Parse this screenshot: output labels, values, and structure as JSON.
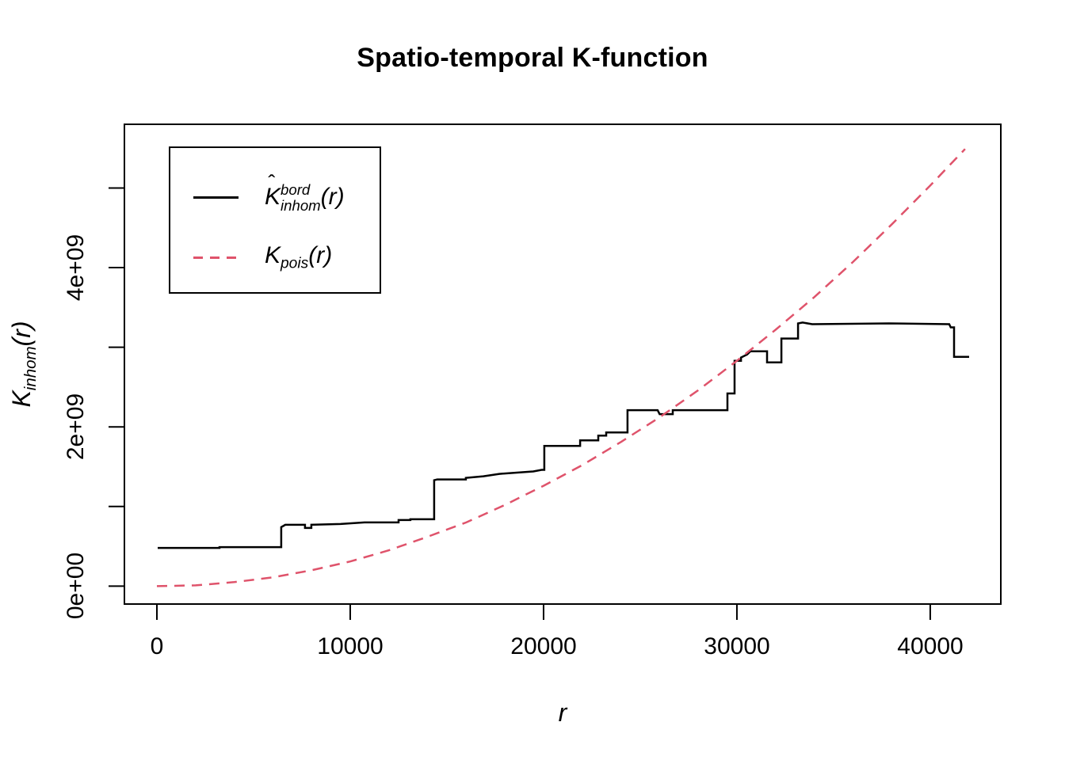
{
  "title": "Spatio-temporal K-function",
  "colors": {
    "foreground": "#000000",
    "poisson_red": "#DF536B",
    "background": "#FFFFFF"
  },
  "axis": {
    "xlabel": "r",
    "ylabel": {
      "base": "K",
      "sub": "inhom",
      "arg": "(r)"
    },
    "x_ticks": [
      {
        "value": 0,
        "label": "0"
      },
      {
        "value": 10000,
        "label": "10000"
      },
      {
        "value": 20000,
        "label": "20000"
      },
      {
        "value": 30000,
        "label": "30000"
      },
      {
        "value": 40000,
        "label": "40000"
      }
    ],
    "y_ticks": [
      {
        "value": 0,
        "label": "0e+00"
      },
      {
        "value": 1,
        "label": ""
      },
      {
        "value": 2,
        "label": "2e+09"
      },
      {
        "value": 3,
        "label": ""
      },
      {
        "value": 4,
        "label": "4e+09"
      },
      {
        "value": 5,
        "label": ""
      }
    ]
  },
  "legend": {
    "entries": [
      {
        "style": "solid",
        "color": "#000000",
        "label": {
          "hat": "ˆ",
          "base": "K",
          "sup": "bord",
          "sub": "inhom",
          "arg": "(r)"
        }
      },
      {
        "style": "dashed",
        "color": "#DF536B",
        "label": {
          "base": "K",
          "sub": "pois",
          "arg": "(r)"
        }
      }
    ]
  },
  "chart_data": {
    "type": "line",
    "title": "Spatio-temporal K-function",
    "xlabel": "r",
    "ylabel": "K_inhom(r)",
    "xlim": [
      -1680,
      43650
    ],
    "ylim_1e9": [
      -0.225,
      5.8
    ],
    "x_tick_values": [
      0,
      10000,
      20000,
      30000,
      40000
    ],
    "y_tick_values_1e9": [
      0,
      1,
      2,
      3,
      4,
      5
    ],
    "y_unit": "1e9",
    "grid": false,
    "legend_position": "top-left",
    "series": [
      {
        "name": "Khat_bord_inhom(r)",
        "type": "step",
        "style": "solid",
        "color": "#000000",
        "points_r_K1e9": [
          [
            40,
            0.48
          ],
          [
            3240,
            0.48
          ],
          [
            3240,
            0.49
          ],
          [
            6430,
            0.49
          ],
          [
            6430,
            0.74
          ],
          [
            6640,
            0.77
          ],
          [
            7660,
            0.77
          ],
          [
            7660,
            0.73
          ],
          [
            7990,
            0.73
          ],
          [
            7990,
            0.77
          ],
          [
            9500,
            0.78
          ],
          [
            10740,
            0.8
          ],
          [
            12500,
            0.8
          ],
          [
            12500,
            0.83
          ],
          [
            13110,
            0.83
          ],
          [
            13110,
            0.84
          ],
          [
            14340,
            0.84
          ],
          [
            14340,
            1.33
          ],
          [
            14500,
            1.34
          ],
          [
            15980,
            1.34
          ],
          [
            15980,
            1.36
          ],
          [
            16890,
            1.38
          ],
          [
            17710,
            1.41
          ],
          [
            19470,
            1.44
          ],
          [
            19900,
            1.46
          ],
          [
            20040,
            1.46
          ],
          [
            20040,
            1.76
          ],
          [
            21890,
            1.76
          ],
          [
            21890,
            1.83
          ],
          [
            22830,
            1.83
          ],
          [
            22830,
            1.89
          ],
          [
            23240,
            1.89
          ],
          [
            23240,
            1.93
          ],
          [
            24340,
            1.93
          ],
          [
            24340,
            2.21
          ],
          [
            25900,
            2.21
          ],
          [
            26000,
            2.16
          ],
          [
            26680,
            2.16
          ],
          [
            26680,
            2.21
          ],
          [
            29510,
            2.21
          ],
          [
            29510,
            2.42
          ],
          [
            29880,
            2.42
          ],
          [
            29880,
            2.83
          ],
          [
            30210,
            2.83
          ],
          [
            30210,
            2.87
          ],
          [
            30530,
            2.91
          ],
          [
            30700,
            2.95
          ],
          [
            31560,
            2.95
          ],
          [
            31560,
            2.81
          ],
          [
            32300,
            2.81
          ],
          [
            32300,
            3.11
          ],
          [
            33160,
            3.11
          ],
          [
            33160,
            3.3
          ],
          [
            33400,
            3.31
          ],
          [
            33890,
            3.29
          ],
          [
            37870,
            3.3
          ],
          [
            40980,
            3.29
          ],
          [
            41060,
            3.25
          ],
          [
            41230,
            3.25
          ],
          [
            41230,
            2.88
          ],
          [
            42010,
            2.88
          ]
        ]
      },
      {
        "name": "K_pois(r)",
        "type": "curve",
        "style": "dashed",
        "color": "#DF536B",
        "formula": "K_pois(r) = pi * r^2",
        "points_r_K1e9": [
          [
            0,
            0
          ],
          [
            2000,
            0.01
          ],
          [
            4000,
            0.05
          ],
          [
            6000,
            0.11
          ],
          [
            8000,
            0.2
          ],
          [
            10000,
            0.31
          ],
          [
            12000,
            0.45
          ],
          [
            14000,
            0.62
          ],
          [
            16000,
            0.8
          ],
          [
            18000,
            1.02
          ],
          [
            20000,
            1.26
          ],
          [
            22000,
            1.52
          ],
          [
            24000,
            1.81
          ],
          [
            26000,
            2.12
          ],
          [
            28000,
            2.46
          ],
          [
            30000,
            2.83
          ],
          [
            32000,
            3.22
          ],
          [
            34000,
            3.63
          ],
          [
            36000,
            4.07
          ],
          [
            38000,
            4.54
          ],
          [
            40000,
            5.03
          ],
          [
            41800,
            5.49
          ]
        ]
      }
    ]
  }
}
